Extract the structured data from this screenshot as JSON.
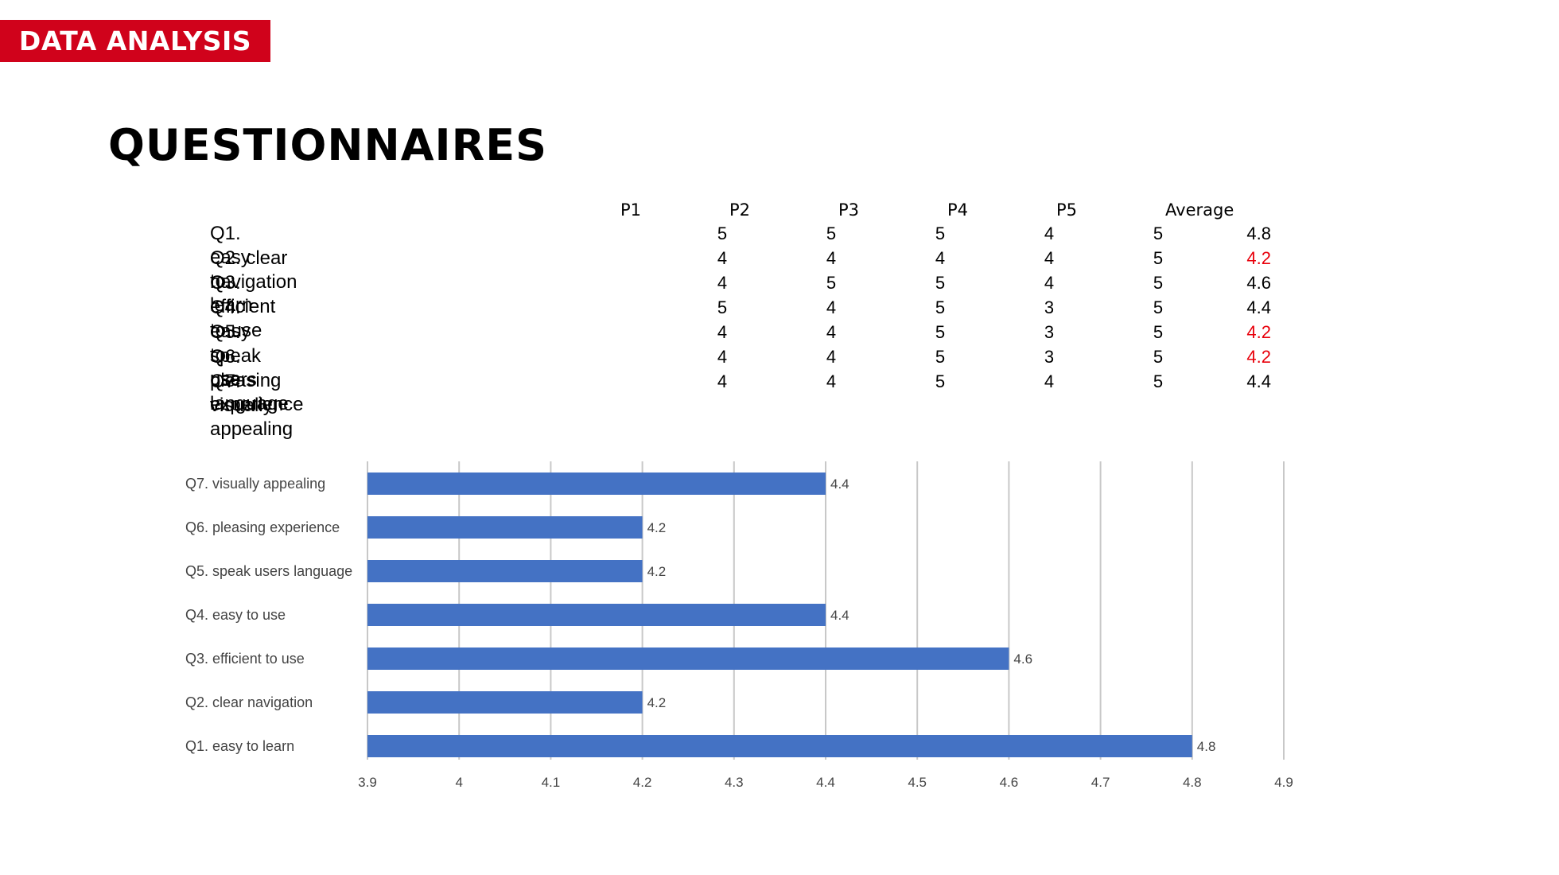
{
  "banner": "DATA ANALYSIS",
  "title": "QUESTIONNAIRES",
  "table": {
    "headers": [
      "P1",
      "P2",
      "P3",
      "P4",
      "P5",
      "Average"
    ],
    "rows": [
      {
        "label": "Q1. easy to learn",
        "scores": [
          "5",
          "5",
          "5",
          "4",
          "5"
        ],
        "average": "4.8",
        "low": false
      },
      {
        "label": "Q2. clear navigation",
        "scores": [
          "4",
          "4",
          "4",
          "4",
          "5"
        ],
        "average": "4.2",
        "low": true
      },
      {
        "label": "Q3. efficient to use",
        "scores": [
          "4",
          "5",
          "5",
          "4",
          "5"
        ],
        "average": "4.6",
        "low": false
      },
      {
        "label": "Q4. easy to use",
        "scores": [
          "5",
          "4",
          "5",
          "3",
          "5"
        ],
        "average": "4.4",
        "low": false
      },
      {
        "label": "Q5. speak users language",
        "scores": [
          "4",
          "4",
          "5",
          "3",
          "5"
        ],
        "average": "4.2",
        "low": true
      },
      {
        "label": "Q6. pleasing experience",
        "scores": [
          "4",
          "4",
          "5",
          "3",
          "5"
        ],
        "average": "4.2",
        "low": true
      },
      {
        "label": "Q7. visually appealing",
        "scores": [
          "4",
          "4",
          "5",
          "4",
          "5"
        ],
        "average": "4.4",
        "low": false
      }
    ]
  },
  "colors": {
    "banner": "#d0021b",
    "low_average": "#e8000b",
    "bar": "#4472c4",
    "grid": "#c8c8c8"
  },
  "chart_data": {
    "type": "bar",
    "orientation": "horizontal",
    "categories": [
      "Q7. visually appealing",
      "Q6. pleasing experience",
      "Q5. speak users language",
      "Q4. easy to use",
      "Q3. efficient to use",
      "Q2. clear navigation",
      "Q1. easy to learn"
    ],
    "values": [
      4.4,
      4.2,
      4.2,
      4.4,
      4.6,
      4.2,
      4.8
    ],
    "value_labels": [
      "4.4",
      "4.2",
      "4.2",
      "4.4",
      "4.6",
      "4.2",
      "4.8"
    ],
    "xlim": [
      3.9,
      4.9
    ],
    "xticks": [
      "3.9",
      "4",
      "4.1",
      "4.2",
      "4.3",
      "4.4",
      "4.5",
      "4.6",
      "4.7",
      "4.8",
      "4.9"
    ],
    "grid": true,
    "legend": "none"
  }
}
